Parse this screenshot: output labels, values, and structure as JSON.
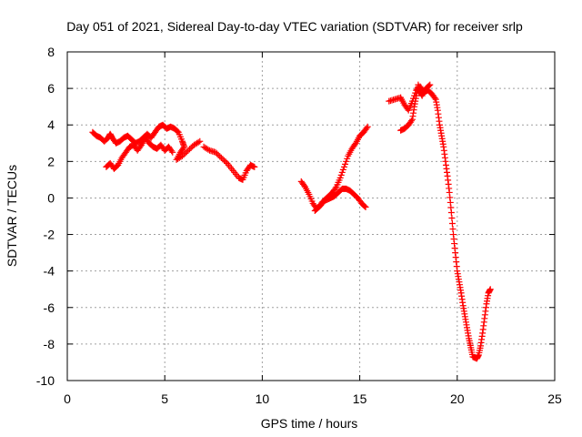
{
  "chart_data": {
    "type": "scatter",
    "title": "Day 051 of 2021, Sidereal Day-to-day VTEC variation (SDTVAR) for receiver srlp",
    "xlabel": "GPS time / hours",
    "ylabel": "SDTVAR / TECUs",
    "xlim": [
      0,
      25
    ],
    "ylim": [
      -10,
      8
    ],
    "xticks": [
      "0",
      "5",
      "10",
      "15",
      "20",
      "25"
    ],
    "yticks": [
      "8",
      "6",
      "4",
      "2",
      "0",
      "-2",
      "-4",
      "-6",
      "-8",
      "-10"
    ],
    "grid": true,
    "marker": "plus",
    "color": "#ff0000",
    "series": [
      {
        "points": [
          [
            1.3,
            3.6
          ],
          [
            1.5,
            3.4
          ],
          [
            1.7,
            3.3
          ],
          [
            1.9,
            3.1
          ],
          [
            2.1,
            3.3
          ],
          [
            2.2,
            3.5
          ],
          [
            2.3,
            3.3
          ],
          [
            2.5,
            3.0
          ],
          [
            2.7,
            3.1
          ],
          [
            2.9,
            3.3
          ],
          [
            3.1,
            3.4
          ],
          [
            3.3,
            3.2
          ],
          [
            3.5,
            3.0
          ],
          [
            3.7,
            3.1
          ],
          [
            3.9,
            3.3
          ],
          [
            4.1,
            3.5
          ],
          [
            4.3,
            3.3
          ],
          [
            4.5,
            3.6
          ],
          [
            4.7,
            3.9
          ],
          [
            4.9,
            4.0
          ],
          [
            5.1,
            3.8
          ],
          [
            5.3,
            3.9
          ],
          [
            5.5,
            3.8
          ],
          [
            5.7,
            3.6
          ],
          [
            5.9,
            3.1
          ],
          [
            6.0,
            2.8
          ],
          [
            5.8,
            2.5
          ],
          [
            5.6,
            2.1
          ],
          [
            5.9,
            2.3
          ],
          [
            6.2,
            2.6
          ],
          [
            6.5,
            2.9
          ],
          [
            6.8,
            3.1
          ]
        ]
      },
      {
        "points": [
          [
            2.0,
            1.7
          ],
          [
            2.2,
            1.9
          ],
          [
            2.4,
            1.6
          ],
          [
            2.6,
            1.8
          ],
          [
            2.8,
            2.2
          ],
          [
            3.0,
            2.5
          ],
          [
            3.2,
            2.8
          ],
          [
            3.4,
            2.9
          ],
          [
            3.6,
            2.6
          ],
          [
            3.8,
            2.9
          ],
          [
            4.0,
            3.3
          ],
          [
            4.2,
            3.0
          ],
          [
            4.4,
            2.8
          ],
          [
            4.6,
            2.7
          ],
          [
            4.8,
            2.9
          ],
          [
            5.0,
            2.6
          ],
          [
            5.2,
            2.8
          ],
          [
            5.4,
            2.5
          ]
        ]
      },
      {
        "points": [
          [
            7.0,
            2.8
          ],
          [
            7.3,
            2.6
          ],
          [
            7.6,
            2.5
          ],
          [
            7.9,
            2.2
          ],
          [
            8.2,
            1.9
          ],
          [
            8.5,
            1.5
          ],
          [
            8.8,
            1.1
          ],
          [
            9.0,
            1.0
          ],
          [
            9.2,
            1.5
          ],
          [
            9.4,
            1.8
          ],
          [
            9.6,
            1.7
          ]
        ]
      },
      {
        "points": [
          [
            12.0,
            0.9
          ],
          [
            12.2,
            0.6
          ],
          [
            12.4,
            0.2
          ],
          [
            12.6,
            -0.3
          ],
          [
            12.8,
            -0.6
          ],
          [
            13.0,
            -0.4
          ],
          [
            13.2,
            -0.1
          ],
          [
            13.4,
            0.1
          ],
          [
            13.6,
            0.3
          ],
          [
            13.8,
            0.6
          ],
          [
            14.0,
            1.1
          ],
          [
            14.2,
            1.7
          ],
          [
            14.4,
            2.3
          ],
          [
            14.6,
            2.7
          ],
          [
            14.8,
            3.0
          ],
          [
            15.0,
            3.4
          ],
          [
            15.2,
            3.6
          ],
          [
            15.4,
            3.9
          ]
        ]
      },
      {
        "points": [
          [
            12.7,
            -0.7
          ],
          [
            12.9,
            -0.5
          ],
          [
            13.1,
            -0.2
          ],
          [
            13.3,
            -0.1
          ],
          [
            13.5,
            0.0
          ],
          [
            13.7,
            0.1
          ],
          [
            13.9,
            0.3
          ],
          [
            14.1,
            0.5
          ],
          [
            14.3,
            0.5
          ],
          [
            14.5,
            0.4
          ],
          [
            14.7,
            0.2
          ],
          [
            14.9,
            0.0
          ],
          [
            15.1,
            -0.3
          ],
          [
            15.3,
            -0.5
          ]
        ]
      },
      {
        "points": [
          [
            16.5,
            5.3
          ],
          [
            16.8,
            5.4
          ],
          [
            17.1,
            5.5
          ],
          [
            17.3,
            5.1
          ],
          [
            17.5,
            4.8
          ],
          [
            17.7,
            5.3
          ],
          [
            17.9,
            5.9
          ],
          [
            18.1,
            6.1
          ],
          [
            18.3,
            5.8
          ],
          [
            18.5,
            5.9
          ],
          [
            18.7,
            5.7
          ],
          [
            18.9,
            5.4
          ],
          [
            19.0,
            4.8
          ],
          [
            19.1,
            4.0
          ],
          [
            19.2,
            3.4
          ],
          [
            19.3,
            2.8
          ],
          [
            19.4,
            2.0
          ],
          [
            19.5,
            1.2
          ],
          [
            19.6,
            0.3
          ],
          [
            19.7,
            -0.8
          ],
          [
            19.8,
            -2.0
          ],
          [
            19.9,
            -3.0
          ],
          [
            20.0,
            -4.0
          ],
          [
            20.1,
            -4.6
          ],
          [
            20.2,
            -5.2
          ],
          [
            20.3,
            -5.9
          ],
          [
            20.4,
            -6.5
          ],
          [
            20.5,
            -7.1
          ],
          [
            20.6,
            -7.7
          ],
          [
            20.7,
            -8.2
          ],
          [
            20.8,
            -8.7
          ],
          [
            21.0,
            -8.8
          ],
          [
            21.1,
            -8.6
          ],
          [
            21.2,
            -8.1
          ],
          [
            21.3,
            -7.4
          ],
          [
            21.4,
            -6.6
          ],
          [
            21.5,
            -5.8
          ],
          [
            21.6,
            -5.2
          ],
          [
            21.7,
            -5.0
          ]
        ]
      },
      {
        "points": [
          [
            17.1,
            3.7
          ],
          [
            17.3,
            3.8
          ],
          [
            17.5,
            4.0
          ],
          [
            17.7,
            4.3
          ],
          [
            17.8,
            5.0
          ],
          [
            17.9,
            5.6
          ],
          [
            18.0,
            6.2
          ],
          [
            18.1,
            5.8
          ],
          [
            18.2,
            5.6
          ],
          [
            18.4,
            6.0
          ],
          [
            18.6,
            6.2
          ]
        ]
      }
    ]
  }
}
